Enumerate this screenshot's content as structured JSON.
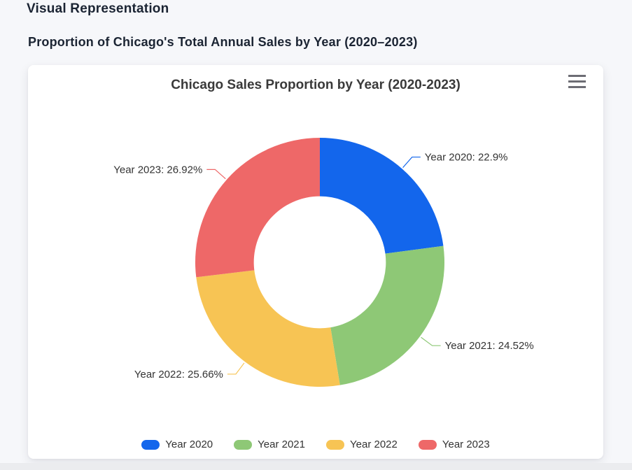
{
  "page": {
    "heading": "Visual Representation",
    "subheading": "Proportion of Chicago's Total Annual Sales by Year (2020–2023)"
  },
  "card": {
    "menu_icon": "hamburger-menu-icon"
  },
  "chart_data": {
    "type": "pie",
    "donut": true,
    "title": "Chicago Sales Proportion by Year (2020-2023)",
    "categories": [
      "Year 2020",
      "Year 2021",
      "Year 2022",
      "Year 2023"
    ],
    "values": [
      22.9,
      24.52,
      25.66,
      26.92
    ],
    "labels": [
      "Year 2020: 22.9%",
      "Year 2021: 24.52%",
      "Year 2022: 25.66%",
      "Year 2023: 26.92%"
    ],
    "colors": [
      "#1366ec",
      "#8ec876",
      "#f7c454",
      "#ee6868"
    ],
    "label_color": "#333333",
    "start_angle_deg": 0,
    "inner_radius_pct": 53,
    "legend_position": "bottom",
    "legend": [
      "Year 2020",
      "Year 2021",
      "Year 2022",
      "Year 2023"
    ]
  }
}
